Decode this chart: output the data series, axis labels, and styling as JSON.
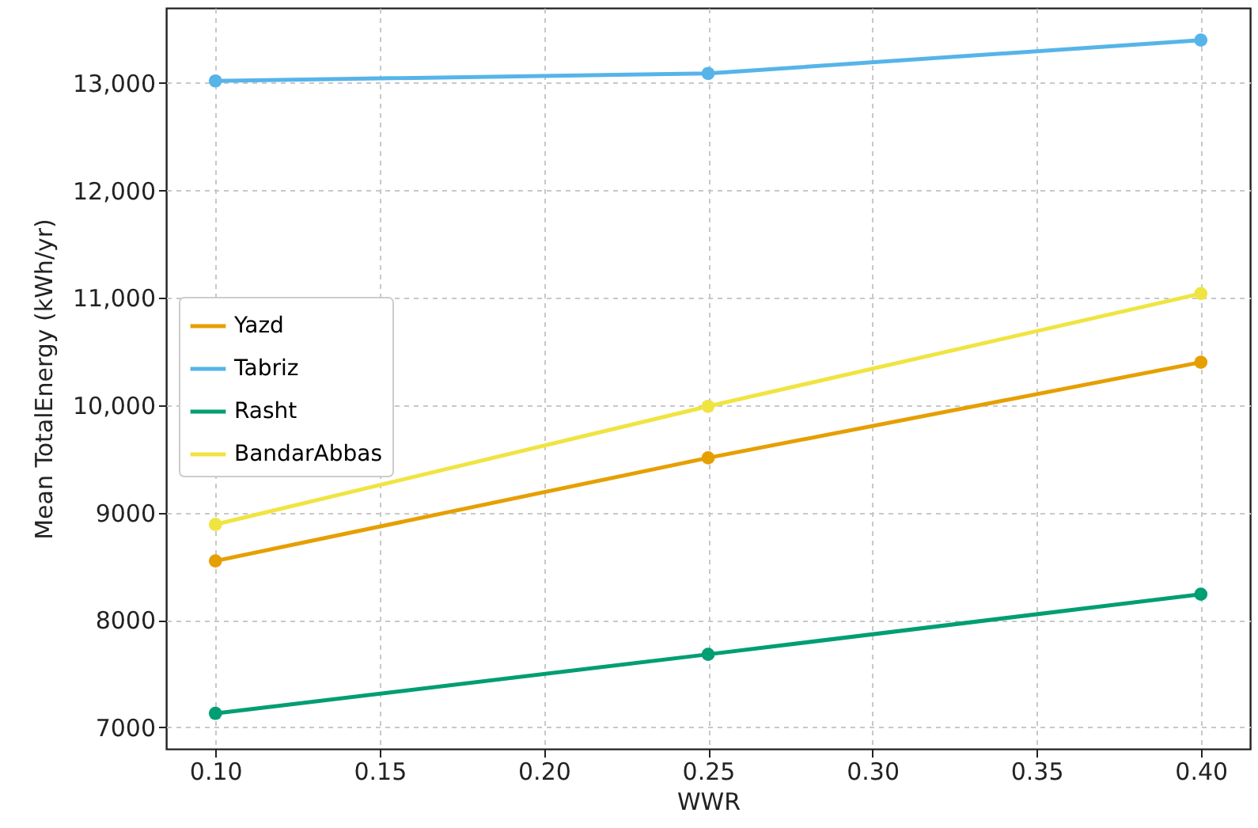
{
  "chart_data": {
    "type": "line",
    "xlabel": "WWR",
    "ylabel": "Mean TotalEnergy (kWh/yr)",
    "x": [
      0.1,
      0.25,
      0.4
    ],
    "series": [
      {
        "name": "Yazd",
        "color": "#e69f00",
        "values": [
          8550,
          9510,
          10400
        ]
      },
      {
        "name": "Tabriz",
        "color": "#56b4e9",
        "values": [
          13020,
          13090,
          13400
        ]
      },
      {
        "name": "Rasht",
        "color": "#009e73",
        "values": [
          7130,
          7680,
          8240
        ]
      },
      {
        "name": "BandarAbbas",
        "color": "#f0e442",
        "values": [
          8890,
          9990,
          11040
        ]
      }
    ],
    "xlim": [
      0.085,
      0.415
    ],
    "xticks": [
      {
        "value": 0.1,
        "label": "0.10"
      },
      {
        "value": 0.15,
        "label": "0.15"
      },
      {
        "value": 0.2,
        "label": "0.20"
      },
      {
        "value": 0.25,
        "label": "0.25"
      },
      {
        "value": 0.3,
        "label": "0.30"
      },
      {
        "value": 0.35,
        "label": "0.35"
      },
      {
        "value": 0.4,
        "label": "0.40"
      }
    ],
    "ylim": [
      6800,
      13700
    ],
    "yticks": [
      7000,
      8000,
      9000,
      {
        "value": 10000,
        "label": "10,000"
      },
      {
        "value": 11000,
        "label": "11,000"
      },
      {
        "value": 12000,
        "label": "12,000"
      },
      {
        "value": 13000,
        "label": "13,000"
      }
    ],
    "grid": true,
    "legend": "left",
    "marker": "circle",
    "line_style": "solid"
  }
}
